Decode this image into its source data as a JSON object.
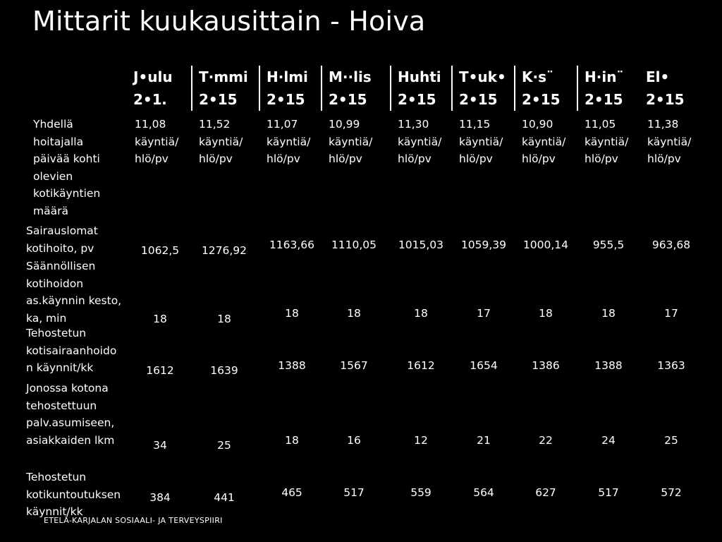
{
  "title": "Mittarit kuukausittain - Hoiva",
  "columns": [
    {
      "month": "J•ulu",
      "year": "2•1․"
    },
    {
      "month": "T·mmi",
      "year": "2•15"
    },
    {
      "month": "H·lmi",
      "year": "2•15"
    },
    {
      "month": "M··lis",
      "year": "2•15"
    },
    {
      "month": "Huhti",
      "year": "2•15"
    },
    {
      "month": "T•uk•",
      "year": "2•15"
    },
    {
      "month": "K·s¨",
      "year": "2•15"
    },
    {
      "month": "H·in¨",
      "year": "2•15"
    },
    {
      "month": "El•",
      "year": "2•15"
    }
  ],
  "rows": [
    {
      "label": [
        "Yhdellä",
        "hoitajalla",
        "päivää kohti",
        "olevien",
        "kotikäyntien",
        "määrä"
      ],
      "values": [
        "11,08",
        "11,52",
        "11,07",
        "10,99",
        "11,30",
        "11,15",
        "10,90",
        "11,05",
        "11,38"
      ],
      "unit_line1": "käyntiä/",
      "unit_line2": "hlö/pv"
    },
    {
      "label": [
        "Sairauslomat",
        "kotihoito, pv"
      ],
      "values": [
        "1062,5",
        "1276,92",
        "1163,66",
        "1110,05",
        "1015,03",
        "1059,39",
        "1000,14",
        "955,5",
        "963,68"
      ]
    },
    {
      "label": [
        "Säännöllisen",
        "kotihoidon",
        "as.käynnin kesto,",
        "ka, min"
      ],
      "values": [
        "18",
        "18",
        "18",
        "18",
        "18",
        "17",
        "18",
        "18",
        "17"
      ]
    },
    {
      "label": [
        "Tehostetun",
        "kotisairaanhoido",
        "n käynnit/kk"
      ],
      "values": [
        "1612",
        "1639",
        "1388",
        "1567",
        "1612",
        "1654",
        "1386",
        "1388",
        "1363"
      ]
    },
    {
      "label": [
        "Jonossa kotona",
        "tehostettuun",
        "palv.asumiseen,",
        "asiakkaiden lkm"
      ],
      "values": [
        "34",
        "25",
        "18",
        "16",
        "12",
        "21",
        "22",
        "24",
        "25"
      ]
    },
    {
      "label": [
        "Tehostetun",
        "kotikuntoutuksen",
        "käynnit/kk"
      ],
      "values": [
        "384",
        "441",
        "465",
        "517",
        "559",
        "564",
        "627",
        "517",
        "572"
      ]
    }
  ],
  "footer": "ETELÄ-KARJALAN SOSIAALI- JA TERVEYSPIIRI"
}
